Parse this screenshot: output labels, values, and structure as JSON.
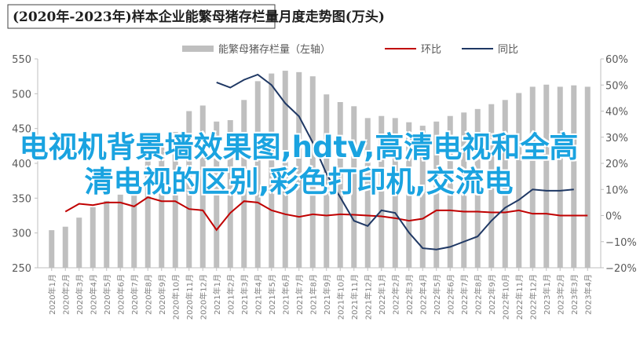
{
  "chart_data": {
    "type": "bar_line",
    "title": "(2020年-2023年)样本企业能繁母猪存栏量月度走势图(万头)",
    "categories": [
      "2020年1月",
      "2020年2月",
      "2020年3月",
      "2020年4月",
      "2020年5月",
      "2020年6月",
      "2020年7月",
      "2020年8月",
      "2020年9月",
      "2020年10月",
      "2020年11月",
      "2020年12月",
      "2021年1月",
      "2021年2月",
      "2021年3月",
      "2021年4月",
      "2021年5月",
      "2021年6月",
      "2021年7月",
      "2021年8月",
      "2021年9月",
      "2021年10月",
      "2021年11月",
      "2021年12月",
      "2022年1月",
      "2022年2月",
      "2022年3月",
      "2022年4月",
      "2022年5月",
      "2022年6月",
      "2022年7月",
      "2022年8月",
      "2022年9月",
      "2022年10月",
      "2022年11月",
      "2022年12月",
      "2023年1月",
      "2023年2月",
      "2023年3月",
      "2023年4月"
    ],
    "series": [
      {
        "name": "能繁母猪存栏量（左轴）",
        "color": "#bfbfbf",
        "kind": "bar",
        "values": [
          304,
          309,
          322,
          337,
          346,
          355,
          362,
          420,
          430,
          445,
          475,
          483,
          460,
          462,
          491,
          518,
          529,
          533,
          531,
          525,
          499,
          488,
          482,
          465,
          468,
          465,
          459,
          454,
          460,
          468,
          473,
          478,
          485,
          491,
          501,
          510,
          513,
          510,
          512,
          510
        ]
      },
      {
        "name": "环比",
        "color": "#c00000",
        "kind": "line",
        "axis": "y2",
        "values": [
          null,
          1.5,
          4.5,
          4,
          5,
          5,
          3.5,
          7,
          5.5,
          5.5,
          2.5,
          2,
          -5.5,
          1,
          5.5,
          5,
          2,
          0.5,
          -0.5,
          0.5,
          0,
          0.5,
          0.3,
          0,
          -0.3,
          -1,
          -2,
          -1.2,
          2,
          2,
          1.5,
          1.5,
          1.2,
          1.2,
          2,
          0.7,
          0.7,
          0,
          0,
          0
        ]
      },
      {
        "name": "同比",
        "color": "#1f3864",
        "kind": "line",
        "axis": "y2",
        "values": [
          null,
          null,
          null,
          null,
          null,
          null,
          null,
          null,
          null,
          null,
          null,
          null,
          51,
          49,
          52,
          54,
          50,
          43,
          38,
          28,
          16,
          7,
          -2,
          -4,
          2,
          1,
          -6.5,
          -12.5,
          -13,
          -12,
          -10,
          -8,
          -2,
          3,
          6,
          10,
          9.5,
          9.5,
          10,
          null
        ]
      }
    ],
    "ylim": [
      250,
      550
    ],
    "yticks": [
      250,
      300,
      350,
      400,
      450,
      500,
      550
    ],
    "y2lim": [
      -20,
      60
    ],
    "y2ticks": [
      {
        "value": -20,
        "label": "−20%"
      },
      {
        "value": -10,
        "label": "−10%"
      },
      {
        "value": 0,
        "label": "0%"
      },
      {
        "value": 10,
        "label": "10%"
      },
      {
        "value": 20,
        "label": "20%"
      },
      {
        "value": 30,
        "label": "30%"
      },
      {
        "value": 40,
        "label": "40%"
      },
      {
        "value": 50,
        "label": "50%"
      },
      {
        "value": 60,
        "label": "60%"
      }
    ],
    "legend": "top",
    "overlay_text": "电视机背景墙效果图,hdtv,高清电视和全高清电视的区别,彩色打印机,交流电"
  }
}
